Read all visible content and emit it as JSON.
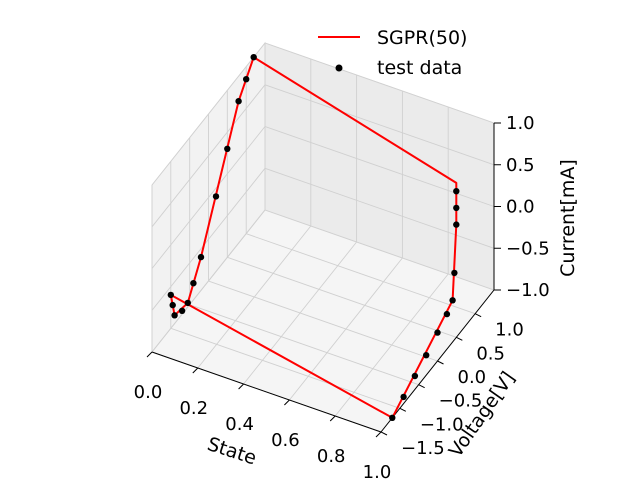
{
  "chart_data": {
    "type": "line",
    "projection": "3d",
    "title": "",
    "xlabel": "State",
    "ylabel": "Voltage[V]",
    "zlabel": "Current[mA]",
    "xlim": [
      0.0,
      1.0
    ],
    "ylim": [
      -1.5,
      1.5
    ],
    "zlim": [
      -1.0,
      1.0
    ],
    "xticks": [
      "0.0",
      "0.2",
      "0.4",
      "0.6",
      "0.8",
      "1.0"
    ],
    "yticks": [
      "−1.5",
      "−1.0",
      "−0.5",
      "0.0",
      "0.5",
      "1.0"
    ],
    "zticks": [
      "−1.0",
      "−0.5",
      "0.0",
      "0.5",
      "1.0"
    ],
    "grid": true,
    "legend": {
      "placement": "top-right"
    },
    "series": [
      {
        "name": "SGPR(50)",
        "kind": "line",
        "color": "#ff0000",
        "points": [
          [
            1.0,
            -1.2,
            -1.0
          ],
          [
            1.0,
            0.4,
            -0.5
          ],
          [
            1.0,
            0.5,
            0.35
          ],
          [
            1.0,
            0.5,
            0.75
          ],
          [
            1.0,
            0.5,
            0.85
          ],
          [
            0.0,
            1.2,
            1.0
          ],
          [
            0.0,
            0.8,
            0.7
          ],
          [
            0.0,
            -0.2,
            -0.6
          ],
          [
            0.0,
            -0.55,
            -0.95
          ],
          [
            0.0,
            -0.9,
            -0.9
          ],
          [
            0.0,
            -1.0,
            -0.6
          ],
          [
            1.0,
            -1.2,
            -1.0
          ]
        ]
      },
      {
        "name": "test data",
        "kind": "scatter",
        "color": "#000000",
        "points": [
          [
            1.0,
            -1.2,
            -1.0
          ],
          [
            1.0,
            -0.9,
            -0.92
          ],
          [
            1.0,
            -0.6,
            -0.84
          ],
          [
            1.0,
            -0.3,
            -0.76
          ],
          [
            1.0,
            0.0,
            -0.66
          ],
          [
            1.0,
            0.25,
            -0.58
          ],
          [
            1.0,
            0.4,
            -0.5
          ],
          [
            1.0,
            0.45,
            -0.2
          ],
          [
            1.0,
            0.5,
            0.35
          ],
          [
            1.0,
            0.5,
            0.55
          ],
          [
            1.0,
            0.5,
            0.75
          ],
          [
            0.0,
            1.2,
            1.0
          ],
          [
            0.0,
            1.0,
            0.85
          ],
          [
            0.0,
            0.8,
            0.7
          ],
          [
            0.0,
            0.5,
            0.3
          ],
          [
            0.0,
            0.2,
            -0.1
          ],
          [
            0.0,
            -0.2,
            -0.6
          ],
          [
            0.0,
            -0.4,
            -0.8
          ],
          [
            0.0,
            -0.55,
            -0.95
          ],
          [
            0.0,
            -0.7,
            -0.96
          ],
          [
            0.0,
            -0.9,
            -0.9
          ],
          [
            0.0,
            -0.95,
            -0.75
          ],
          [
            0.0,
            -1.0,
            -0.6
          ]
        ]
      }
    ]
  }
}
